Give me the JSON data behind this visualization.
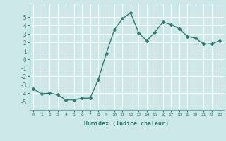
{
  "x": [
    0,
    1,
    2,
    3,
    4,
    5,
    6,
    7,
    8,
    9,
    10,
    11,
    12,
    13,
    14,
    15,
    16,
    17,
    18,
    19,
    20,
    21,
    22,
    23
  ],
  "y": [
    -3.5,
    -4.1,
    -4.0,
    -4.2,
    -4.8,
    -4.8,
    -4.6,
    -4.6,
    -2.4,
    0.7,
    3.5,
    4.8,
    5.5,
    3.1,
    2.2,
    3.2,
    4.4,
    4.1,
    3.6,
    2.7,
    2.5,
    1.8,
    1.8,
    2.2
  ],
  "line_color": "#2e7d6e",
  "marker": "D",
  "marker_size": 2,
  "line_width": 1.0,
  "bg_color": "#cce8e8",
  "grid_color": "#ffffff",
  "xlabel": "Humidex (Indice chaleur)",
  "ylim": [
    -6,
    6.5
  ],
  "xlim": [
    -0.5,
    23.5
  ],
  "yticks": [
    -5,
    -4,
    -3,
    -2,
    -1,
    0,
    1,
    2,
    3,
    4,
    5
  ],
  "xticks": [
    0,
    1,
    2,
    3,
    4,
    5,
    6,
    7,
    8,
    9,
    10,
    11,
    12,
    13,
    14,
    15,
    16,
    17,
    18,
    19,
    20,
    21,
    22,
    23
  ]
}
